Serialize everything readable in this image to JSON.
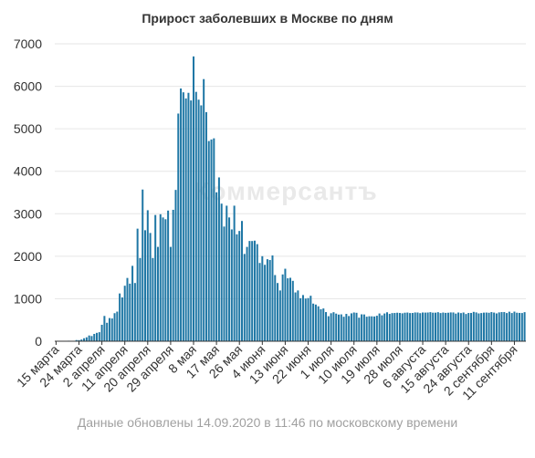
{
  "chart_data": {
    "type": "bar",
    "title": "Прирост заболевших в Москве по дням",
    "xlabel": "",
    "ylabel": "",
    "ylim": [
      0,
      7000
    ],
    "yticks": [
      0,
      1000,
      2000,
      3000,
      4000,
      5000,
      6000,
      7000
    ],
    "grid": true,
    "bar_color": "#1f77a5",
    "start_label": "15 марта",
    "tick_labels": [
      "15 марта",
      "24 марта",
      "2 апреля",
      "11 апреля",
      "20 апреля",
      "29 апреля",
      "8 мая",
      "17 мая",
      "26 мая",
      "4 июня",
      "13 июня",
      "22 июня",
      "1 июля",
      "10 июля",
      "19 июля",
      "28 июля",
      "6 августа",
      "15 августа",
      "24 августа",
      "2 сентября",
      "11 сентября"
    ],
    "values": [
      4,
      6,
      2,
      3,
      8,
      12,
      4,
      10,
      28,
      26,
      40,
      70,
      92,
      135,
      122,
      172,
      197,
      212,
      387,
      595,
      434,
      545,
      536,
      660,
      697,
      1124,
      1030,
      1306,
      1489,
      1355,
      1774,
      1370,
      2649,
      1959,
      3570,
      2612,
      3083,
      2548,
      1959,
      2971,
      2220,
      2988,
      2913,
      2871,
      3075,
      2220,
      3093,
      3561,
      5358,
      5948,
      5858,
      5714,
      5846,
      5667,
      6703,
      5869,
      5685,
      5551,
      6169,
      5392,
      4712,
      4748,
      4775,
      3505,
      3855,
      3238,
      2699,
      3190,
      2913,
      2631,
      3190,
      2516,
      2595,
      2830,
      2054,
      2220,
      2359,
      2358,
      2367,
      2285,
      1842,
      2001,
      1798,
      1930,
      1911,
      2019,
      1557,
      1370,
      1195,
      1572,
      1706,
      1481,
      1493,
      1421,
      1148,
      1195,
      1012,
      1087,
      1004,
      1015,
      1070,
      885,
      863,
      822,
      753,
      771,
      686,
      589,
      659,
      683,
      650,
      627,
      632,
      576,
      643,
      593,
      656,
      676,
      669,
      554,
      633,
      630,
      577,
      587,
      586,
      582,
      599,
      653,
      610,
      653,
      681,
      643,
      662,
      665,
      671,
      665,
      657,
      671,
      675,
      663,
      665,
      677,
      676,
      661,
      676,
      674,
      676,
      684,
      672,
      672,
      683,
      663,
      675,
      667,
      671,
      678,
      677,
      650,
      676,
      662,
      676,
      641,
      665,
      665,
      691,
      678,
      655,
      663,
      673,
      675,
      670,
      686,
      674,
      655,
      679,
      686,
      686,
      663,
      695,
      664,
      697,
      671,
      666,
      664,
      684
    ]
  },
  "watermark": "Коммерсантъ",
  "footer": "Данные обновлены 14.09.2020 в 11:46 по московскому времени"
}
